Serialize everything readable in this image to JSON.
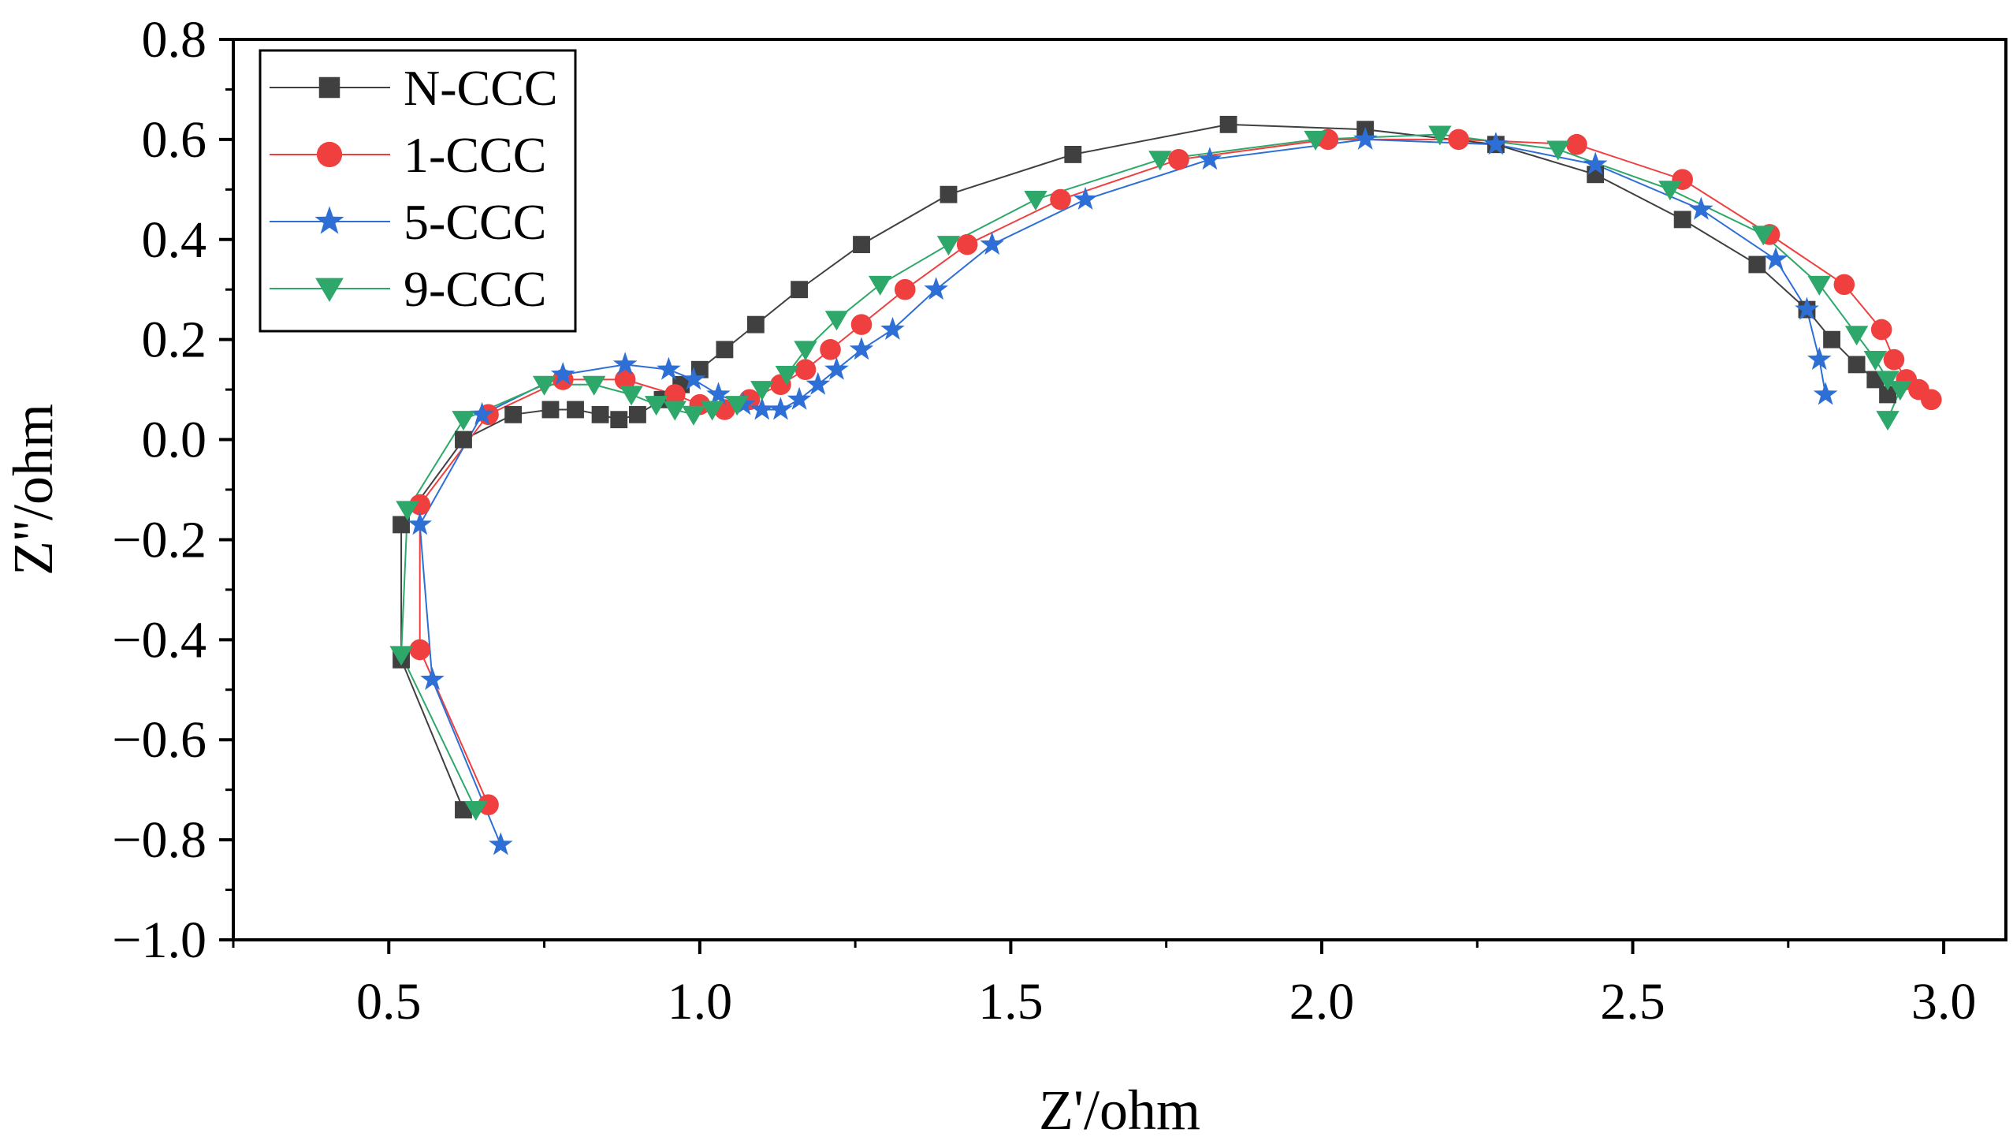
{
  "chart_data": {
    "type": "scatter",
    "title": "",
    "xlabel": "Z'/ohm",
    "ylabel": "Z''/ohm",
    "xlim": [
      0.25,
      3.1
    ],
    "ylim": [
      -1.0,
      0.8
    ],
    "xticks": [
      "0.5",
      "1.0",
      "1.5",
      "2.0",
      "2.5",
      "3.0"
    ],
    "xtick_values": [
      0.5,
      1.0,
      1.5,
      2.0,
      2.5,
      3.0
    ],
    "yticks": [
      "0.8",
      "0.6",
      "0.4",
      "0.2",
      "0.0",
      "−0.2",
      "−0.4",
      "−0.6",
      "−0.8",
      "−1.0"
    ],
    "ytick_values": [
      0.8,
      0.6,
      0.4,
      0.2,
      0.0,
      -0.2,
      -0.4,
      -0.6,
      -0.8,
      -1.0
    ],
    "grid": false,
    "legend_position": "top-left",
    "series": [
      {
        "name": "N-CCC",
        "color": "#404040",
        "marker": "square",
        "points": [
          [
            0.62,
            -0.74
          ],
          [
            0.52,
            -0.44
          ],
          [
            0.52,
            -0.17
          ],
          [
            0.62,
            0.0
          ],
          [
            0.7,
            0.05
          ],
          [
            0.76,
            0.06
          ],
          [
            0.8,
            0.06
          ],
          [
            0.84,
            0.05
          ],
          [
            0.87,
            0.04
          ],
          [
            0.9,
            0.05
          ],
          [
            0.94,
            0.08
          ],
          [
            0.97,
            0.11
          ],
          [
            1.0,
            0.14
          ],
          [
            1.04,
            0.18
          ],
          [
            1.09,
            0.23
          ],
          [
            1.16,
            0.3
          ],
          [
            1.26,
            0.39
          ],
          [
            1.4,
            0.49
          ],
          [
            1.6,
            0.57
          ],
          [
            1.85,
            0.63
          ],
          [
            2.07,
            0.62
          ],
          [
            2.28,
            0.59
          ],
          [
            2.44,
            0.53
          ],
          [
            2.58,
            0.44
          ],
          [
            2.7,
            0.35
          ],
          [
            2.78,
            0.26
          ],
          [
            2.82,
            0.2
          ],
          [
            2.86,
            0.15
          ],
          [
            2.89,
            0.12
          ],
          [
            2.91,
            0.09
          ]
        ]
      },
      {
        "name": "1-CCC",
        "color": "#ef3f3f",
        "marker": "circle",
        "points": [
          [
            0.66,
            -0.73
          ],
          [
            0.55,
            -0.42
          ],
          [
            0.55,
            -0.13
          ],
          [
            0.66,
            0.05
          ],
          [
            0.78,
            0.12
          ],
          [
            0.88,
            0.12
          ],
          [
            0.96,
            0.09
          ],
          [
            1.0,
            0.07
          ],
          [
            1.04,
            0.06
          ],
          [
            1.08,
            0.08
          ],
          [
            1.13,
            0.11
          ],
          [
            1.17,
            0.14
          ],
          [
            1.21,
            0.18
          ],
          [
            1.26,
            0.23
          ],
          [
            1.33,
            0.3
          ],
          [
            1.43,
            0.39
          ],
          [
            1.58,
            0.48
          ],
          [
            1.77,
            0.56
          ],
          [
            2.01,
            0.6
          ],
          [
            2.22,
            0.6
          ],
          [
            2.41,
            0.59
          ],
          [
            2.58,
            0.52
          ],
          [
            2.72,
            0.41
          ],
          [
            2.84,
            0.31
          ],
          [
            2.9,
            0.22
          ],
          [
            2.92,
            0.16
          ],
          [
            2.94,
            0.12
          ],
          [
            2.96,
            0.1
          ],
          [
            2.98,
            0.08
          ]
        ]
      },
      {
        "name": "5-CCC",
        "color": "#2e6fd6",
        "marker": "star",
        "points": [
          [
            0.68,
            -0.81
          ],
          [
            0.57,
            -0.48
          ],
          [
            0.55,
            -0.17
          ],
          [
            0.65,
            0.05
          ],
          [
            0.78,
            0.13
          ],
          [
            0.88,
            0.15
          ],
          [
            0.95,
            0.14
          ],
          [
            0.99,
            0.12
          ],
          [
            1.03,
            0.09
          ],
          [
            1.07,
            0.07
          ],
          [
            1.1,
            0.06
          ],
          [
            1.13,
            0.06
          ],
          [
            1.16,
            0.08
          ],
          [
            1.19,
            0.11
          ],
          [
            1.22,
            0.14
          ],
          [
            1.26,
            0.18
          ],
          [
            1.31,
            0.22
          ],
          [
            1.38,
            0.3
          ],
          [
            1.47,
            0.39
          ],
          [
            1.62,
            0.48
          ],
          [
            1.82,
            0.56
          ],
          [
            2.07,
            0.6
          ],
          [
            2.28,
            0.59
          ],
          [
            2.44,
            0.55
          ],
          [
            2.61,
            0.46
          ],
          [
            2.73,
            0.36
          ],
          [
            2.78,
            0.26
          ],
          [
            2.8,
            0.16
          ],
          [
            2.81,
            0.09
          ]
        ]
      },
      {
        "name": "9-CCC",
        "color": "#2ea86a",
        "marker": "triangle-down",
        "points": [
          [
            0.64,
            -0.74
          ],
          [
            0.52,
            -0.43
          ],
          [
            0.53,
            -0.14
          ],
          [
            0.62,
            0.04
          ],
          [
            0.75,
            0.11
          ],
          [
            0.83,
            0.11
          ],
          [
            0.89,
            0.09
          ],
          [
            0.93,
            0.07
          ],
          [
            0.96,
            0.06
          ],
          [
            0.99,
            0.05
          ],
          [
            1.02,
            0.06
          ],
          [
            1.06,
            0.07
          ],
          [
            1.1,
            0.1
          ],
          [
            1.14,
            0.13
          ],
          [
            1.17,
            0.18
          ],
          [
            1.22,
            0.24
          ],
          [
            1.29,
            0.31
          ],
          [
            1.4,
            0.39
          ],
          [
            1.54,
            0.48
          ],
          [
            1.74,
            0.56
          ],
          [
            1.99,
            0.6
          ],
          [
            2.19,
            0.61
          ],
          [
            2.38,
            0.58
          ],
          [
            2.56,
            0.5
          ],
          [
            2.71,
            0.41
          ],
          [
            2.8,
            0.31
          ],
          [
            2.86,
            0.21
          ],
          [
            2.89,
            0.16
          ],
          [
            2.91,
            0.12
          ],
          [
            2.93,
            0.1
          ],
          [
            2.91,
            0.04
          ]
        ]
      }
    ]
  }
}
